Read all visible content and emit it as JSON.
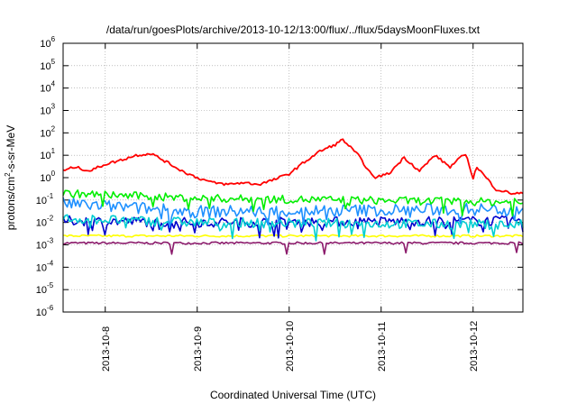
{
  "chart_data": {
    "type": "line",
    "title": "/data/run/goesPlots/archive/2013-10-12/13:00/flux/../flux/5daysMoonFluxes.txt",
    "xlabel": "Coordinated Universal Time (UTC)",
    "ylabel": {
      "prefix": "protons/cm",
      "exponent": "2",
      "suffix": "-s-sr-MeV"
    },
    "y_scale": "log",
    "ylim": [
      1e-06,
      1000000.0
    ],
    "yticks": [
      {
        "base": "10",
        "exp": "-6"
      },
      {
        "base": "10",
        "exp": "-5"
      },
      {
        "base": "10",
        "exp": "-4"
      },
      {
        "base": "10",
        "exp": "-3"
      },
      {
        "base": "10",
        "exp": "-2"
      },
      {
        "base": "10",
        "exp": "-1"
      },
      {
        "base": "10",
        "exp": "0"
      },
      {
        "base": "10",
        "exp": "1"
      },
      {
        "base": "10",
        "exp": "2"
      },
      {
        "base": "10",
        "exp": "3"
      },
      {
        "base": "10",
        "exp": "4"
      },
      {
        "base": "10",
        "exp": "5"
      },
      {
        "base": "10",
        "exp": "6"
      }
    ],
    "xlim": [
      "2013-10-07 13:00",
      "2013-10-12 13:00"
    ],
    "xticks": [
      "2013-10-8",
      "2013-10-9",
      "2013-10-10",
      "2013-10-11",
      "2013-10-12"
    ],
    "grid": true,
    "series": [
      {
        "color": "#ff0000",
        "points": [
          [
            "2013-10-07 13:00",
            2.0
          ],
          [
            "2013-10-07 16:00",
            3.0
          ],
          [
            "2013-10-07 20:00",
            2.0
          ],
          [
            "2013-10-08 00:00",
            4.0
          ],
          [
            "2013-10-08 04:00",
            6.0
          ],
          [
            "2013-10-08 08:00",
            10.0
          ],
          [
            "2013-10-08 12:00",
            12.0
          ],
          [
            "2013-10-08 16:00",
            5.0
          ],
          [
            "2013-10-08 20:00",
            2.0
          ],
          [
            "2013-10-09 00:00",
            1.0
          ],
          [
            "2013-10-09 04:00",
            0.6
          ],
          [
            "2013-10-09 08:00",
            0.5
          ],
          [
            "2013-10-09 12:00",
            0.6
          ],
          [
            "2013-10-09 16:00",
            0.5
          ],
          [
            "2013-10-09 20:00",
            0.8
          ],
          [
            "2013-10-10 00:00",
            1.5
          ],
          [
            "2013-10-10 04:00",
            5.0
          ],
          [
            "2013-10-10 08:00",
            15.0
          ],
          [
            "2013-10-10 12:00",
            30.0
          ],
          [
            "2013-10-10 14:00",
            50.0
          ],
          [
            "2013-10-10 18:00",
            10.0
          ],
          [
            "2013-10-10 22:00",
            1.0
          ],
          [
            "2013-10-11 02:00",
            1.5
          ],
          [
            "2013-10-11 06:00",
            8.0
          ],
          [
            "2013-10-11 10:00",
            2.0
          ],
          [
            "2013-10-11 14:00",
            10.0
          ],
          [
            "2013-10-11 18:00",
            3.0
          ],
          [
            "2013-10-11 22:00",
            12.0
          ],
          [
            "2013-10-12 00:00",
            1.0
          ],
          [
            "2013-10-12 01:00",
            3.0
          ],
          [
            "2013-10-12 06:00",
            0.3
          ],
          [
            "2013-10-12 10:00",
            0.2
          ],
          [
            "2013-10-12 13:00",
            0.2
          ]
        ]
      },
      {
        "color": "#00ee00",
        "points": [
          [
            "2013-10-07 13:00",
            0.2
          ],
          [
            "2013-10-09 00:00",
            0.12
          ],
          [
            "2013-10-12 13:00",
            0.08
          ]
        ]
      },
      {
        "color": "#1e90ff",
        "points": [
          [
            "2013-10-07 13:00",
            0.07
          ],
          [
            "2013-10-09 00:00",
            0.03
          ],
          [
            "2013-10-12 13:00",
            0.04
          ]
        ]
      },
      {
        "color": "#00ced1",
        "points": [
          [
            "2013-10-07 13:00",
            0.015
          ],
          [
            "2013-10-09 00:00",
            0.01
          ],
          [
            "2013-10-12 13:00",
            0.008
          ]
        ]
      },
      {
        "color": "#0000cd",
        "points": [
          [
            "2013-10-07 13:00",
            0.012
          ],
          [
            "2013-10-09 00:00",
            0.01
          ],
          [
            "2013-10-12 13:00",
            0.012
          ]
        ]
      },
      {
        "color": "#ffff00",
        "points": [
          [
            "2013-10-07 13:00",
            0.0025
          ],
          [
            "2013-10-09 00:00",
            0.0025
          ],
          [
            "2013-10-12 13:00",
            0.0025
          ]
        ]
      },
      {
        "color": "#8b1a6b",
        "points": [
          [
            "2013-10-07 13:00",
            0.0012
          ],
          [
            "2013-10-09 00:00",
            0.0012
          ],
          [
            "2013-10-12 13:00",
            0.0012
          ]
        ]
      }
    ]
  }
}
